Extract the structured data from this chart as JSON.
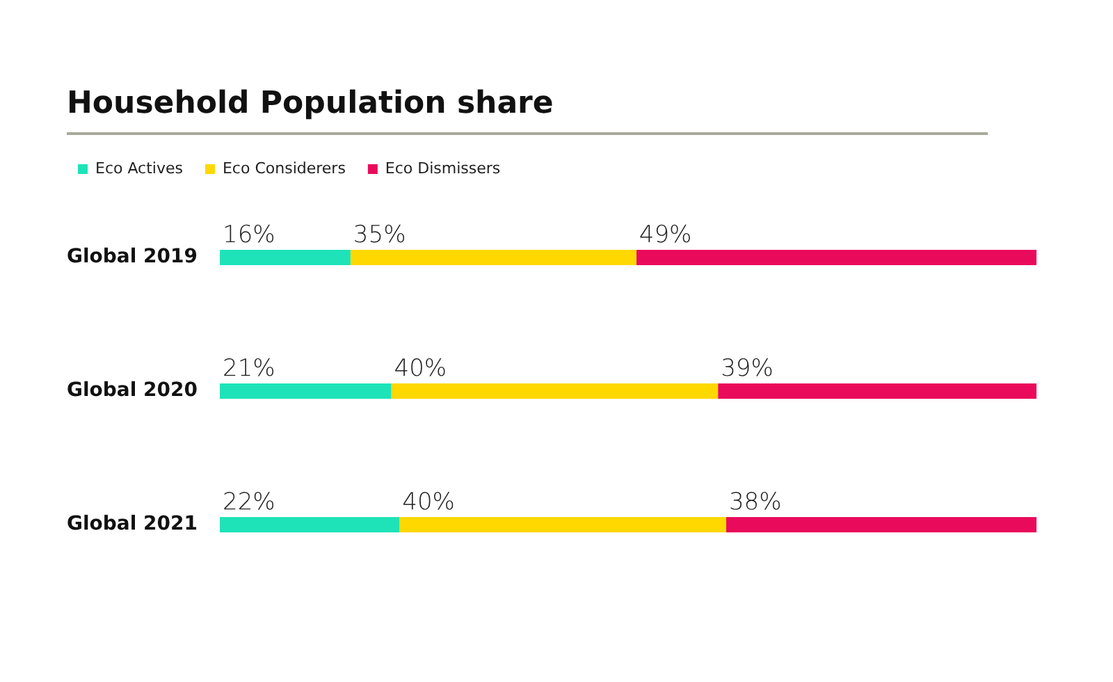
{
  "chart_data": {
    "type": "bar",
    "orientation": "horizontal",
    "stacked": true,
    "title": "Household Population share",
    "legend": "top left",
    "categories": [
      "Global 2019",
      "Global 2020",
      "Global 2021"
    ],
    "series": [
      {
        "name": "Eco Actives",
        "color": "#1ee3b9",
        "values": [
          16,
          21,
          22
        ],
        "value_labels": [
          "16%",
          "21%",
          "22%"
        ]
      },
      {
        "name": "Eco Considerers",
        "color": "#ffd800",
        "values": [
          35,
          40,
          40
        ],
        "value_labels": [
          "35%",
          "40%",
          "40%"
        ]
      },
      {
        "name": "Eco Dismissers",
        "color": "#ea0a5c",
        "values": [
          49,
          39,
          38
        ],
        "value_labels": [
          "49%",
          "39%",
          "38%"
        ]
      }
    ]
  }
}
